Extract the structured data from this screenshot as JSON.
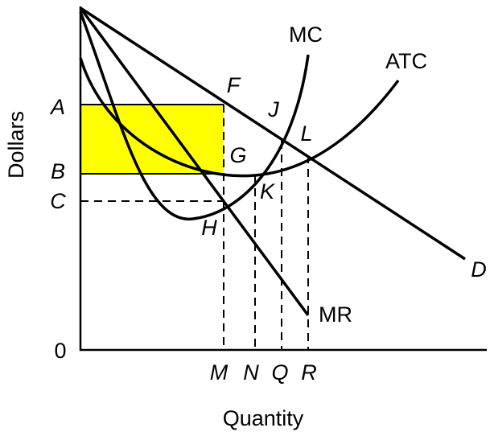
{
  "axes": {
    "y_label": "Dollars",
    "x_label": "Quantity",
    "origin": "0"
  },
  "y_labels": [
    "A",
    "B",
    "C"
  ],
  "x_labels": [
    "M",
    "N",
    "Q",
    "R"
  ],
  "point_labels": [
    "F",
    "J",
    "L",
    "G",
    "K",
    "H"
  ],
  "curve_labels": [
    "MC",
    "ATC",
    "D",
    "MR"
  ]
}
